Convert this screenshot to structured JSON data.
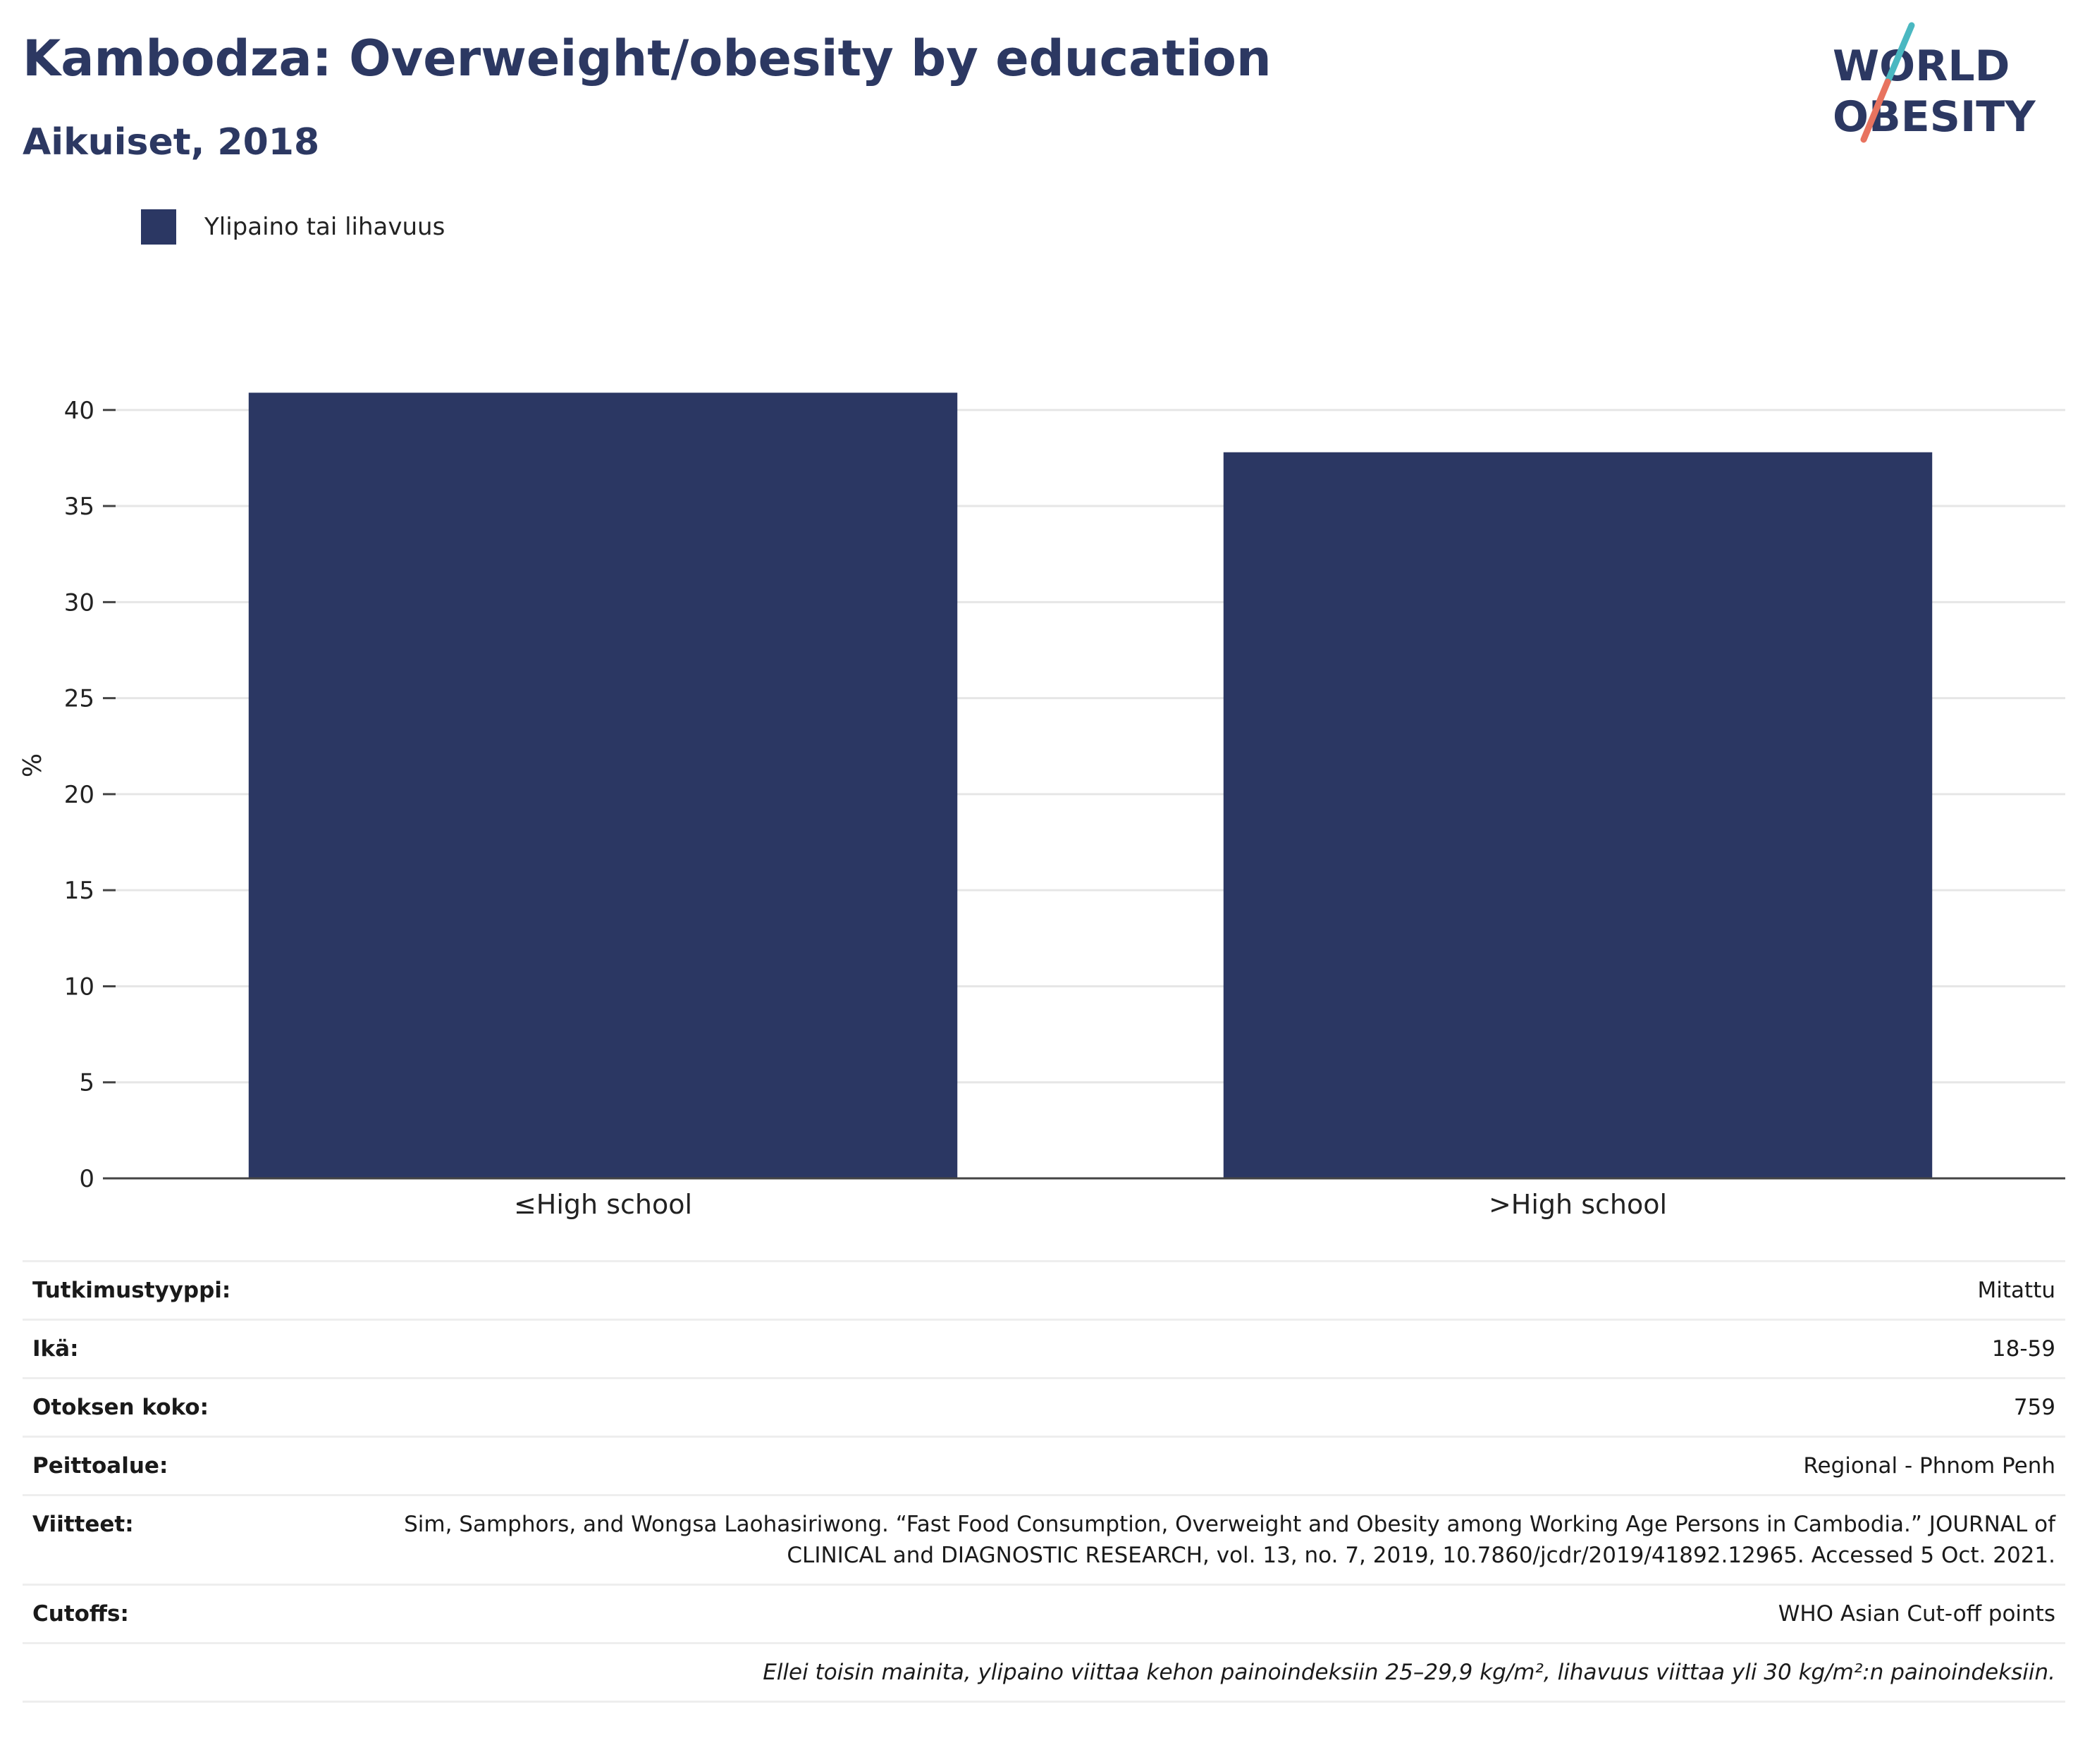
{
  "header": {
    "title": "Kambodza: Overweight/obesity by education",
    "subtitle": "Aikuiset, 2018"
  },
  "logo": {
    "line1": "WORLD",
    "line2": "OBESITY",
    "colors": {
      "text": "#2c3862",
      "slash_top": "#4ab8c1",
      "slash_bottom": "#e8735f"
    }
  },
  "legend": {
    "label": "Ylipaino tai lihavuus",
    "color": "#2b3763"
  },
  "chart_data": {
    "type": "bar",
    "categories": [
      "≤High school",
      ">High school"
    ],
    "series": [
      {
        "name": "Ylipaino tai lihavuus",
        "values": [
          40.9,
          37.8
        ],
        "color": "#2b3763"
      }
    ],
    "title": "Kambodza: Overweight/obesity by education",
    "subtitle": "Aikuiset, 2018",
    "xlabel": "",
    "ylabel": "%",
    "ylim": [
      0,
      43
    ],
    "yticks": [
      0,
      5,
      10,
      15,
      20,
      25,
      30,
      35,
      40
    ],
    "grid": true,
    "legend_position": "top-left"
  },
  "meta": {
    "rows": [
      {
        "key": "Tutkimustyyppi:",
        "value": "Mitattu"
      },
      {
        "key": "Ikä:",
        "value": "18-59"
      },
      {
        "key": "Otoksen koko:",
        "value": "759"
      },
      {
        "key": "Peittoalue:",
        "value": "Regional - Phnom Penh"
      },
      {
        "key": "Viitteet:",
        "value": "Sim, Samphors, and Wongsa Laohasiriwong. “Fast Food Consumption, Overweight and Obesity among Working Age Persons in Cambodia.” JOURNAL of CLINICAL and DIAGNOSTIC RESEARCH, vol. 13, no. 7, 2019, 10.7860/jcdr/2019/41892.12965. Accessed 5 Oct. 2021."
      },
      {
        "key": "Cutoffs:",
        "value": "WHO Asian Cut-off points"
      }
    ],
    "note": "Ellei toisin mainita, ylipaino viittaa kehon painoindeksiin 25–29,9 kg/m², lihavuus viittaa yli 30 kg/m²:n painoindeksiin."
  }
}
